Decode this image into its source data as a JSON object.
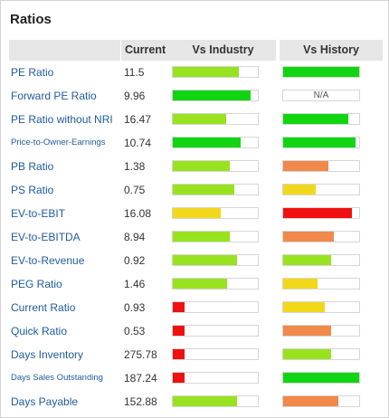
{
  "title": "Ratios",
  "header": {
    "current": "Current",
    "vs_industry": "Vs Industry",
    "vs_history": "Vs History"
  },
  "colors": {
    "bright_green": "#12d512",
    "yellow_green": "#99e21f",
    "yellow": "#f2d81a",
    "orange": "#f0894a",
    "red": "#f01010"
  },
  "rows": [
    {
      "label": "PE Ratio",
      "value": "11.5",
      "industry": {
        "fill": 0.78,
        "color": "yellow_green"
      },
      "history": {
        "fill": 1.0,
        "color": "bright_green"
      }
    },
    {
      "label": "Forward PE Ratio",
      "value": "9.96",
      "industry": {
        "fill": 0.92,
        "color": "bright_green"
      },
      "history": {
        "na": "N/A"
      }
    },
    {
      "label": "PE Ratio without NRI",
      "value": "16.47",
      "industry": {
        "fill": 0.63,
        "color": "yellow_green"
      },
      "history": {
        "fill": 0.86,
        "color": "bright_green"
      }
    },
    {
      "label": "Price-to-Owner-Earnings",
      "value": "10.74",
      "industry": {
        "fill": 0.8,
        "color": "bright_green"
      },
      "history": {
        "fill": 0.95,
        "color": "bright_green"
      },
      "small": true
    },
    {
      "label": "PB Ratio",
      "value": "1.38",
      "industry": {
        "fill": 0.67,
        "color": "yellow_green"
      },
      "history": {
        "fill": 0.6,
        "color": "orange"
      }
    },
    {
      "label": "PS Ratio",
      "value": "0.75",
      "industry": {
        "fill": 0.72,
        "color": "yellow_green"
      },
      "history": {
        "fill": 0.43,
        "color": "yellow"
      }
    },
    {
      "label": "EV-to-EBIT",
      "value": "16.08",
      "industry": {
        "fill": 0.56,
        "color": "yellow"
      },
      "history": {
        "fill": 0.9,
        "color": "red"
      }
    },
    {
      "label": "EV-to-EBITDA",
      "value": "8.94",
      "industry": {
        "fill": 0.67,
        "color": "yellow_green"
      },
      "history": {
        "fill": 0.67,
        "color": "orange"
      }
    },
    {
      "label": "EV-to-Revenue",
      "value": "0.92",
      "industry": {
        "fill": 0.76,
        "color": "yellow_green"
      },
      "history": {
        "fill": 0.63,
        "color": "yellow_green"
      }
    },
    {
      "label": "PEG Ratio",
      "value": "1.46",
      "industry": {
        "fill": 0.64,
        "color": "yellow_green"
      },
      "history": {
        "fill": 0.45,
        "color": "yellow"
      }
    },
    {
      "label": "Current Ratio",
      "value": "0.93",
      "industry": {
        "fill": 0.14,
        "color": "red"
      },
      "history": {
        "fill": 0.55,
        "color": "yellow"
      }
    },
    {
      "label": "Quick Ratio",
      "value": "0.53",
      "industry": {
        "fill": 0.14,
        "color": "red"
      },
      "history": {
        "fill": 0.63,
        "color": "orange"
      }
    },
    {
      "label": "Days Inventory",
      "value": "275.78",
      "industry": {
        "fill": 0.14,
        "color": "red"
      },
      "history": {
        "fill": 0.63,
        "color": "yellow_green"
      }
    },
    {
      "label": "Days Sales Outstanding",
      "value": "187.24",
      "industry": {
        "fill": 0.14,
        "color": "red"
      },
      "history": {
        "fill": 1.0,
        "color": "bright_green"
      },
      "small": true
    },
    {
      "label": "Days Payable",
      "value": "152.88",
      "industry": {
        "fill": 0.76,
        "color": "yellow_green"
      },
      "history": {
        "fill": 0.73,
        "color": "orange"
      }
    }
  ]
}
